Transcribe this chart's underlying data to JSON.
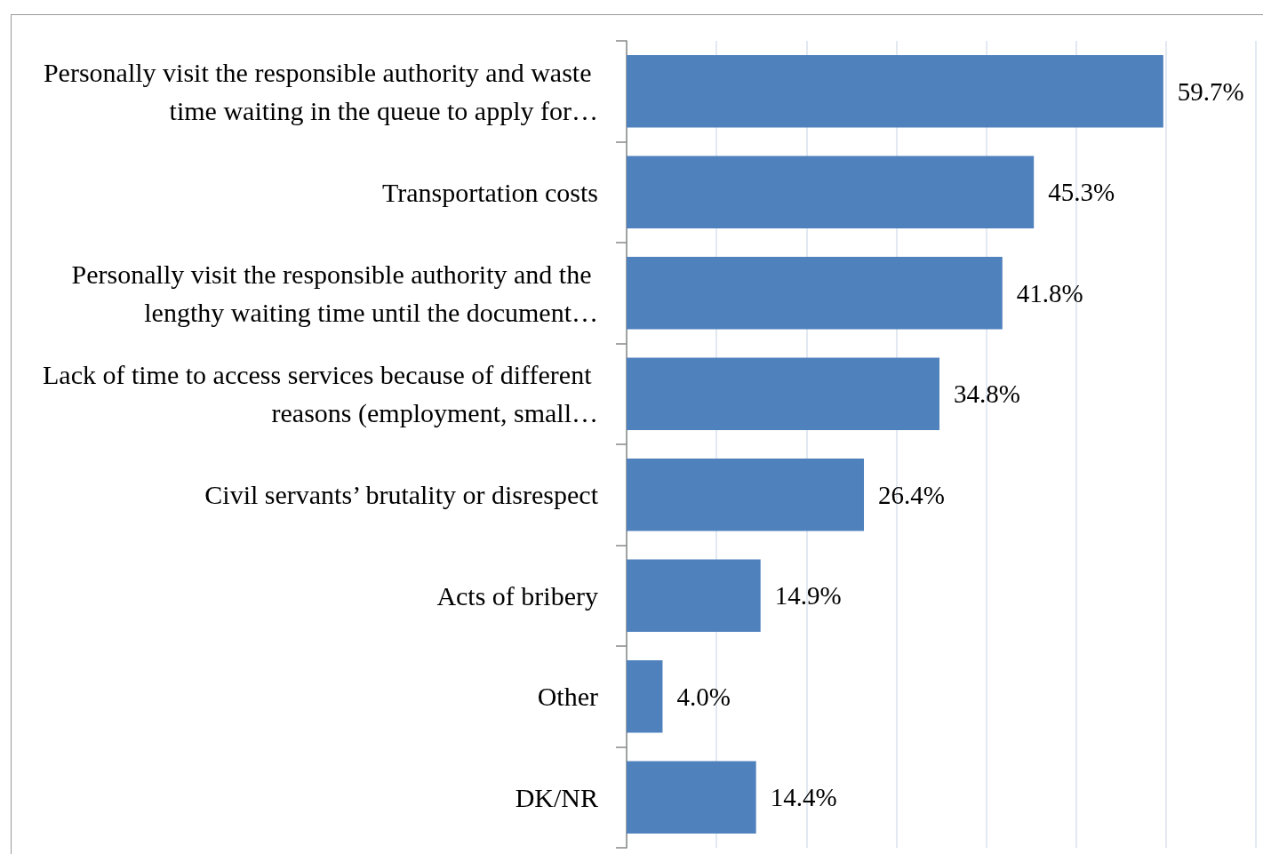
{
  "chart_data": {
    "type": "bar",
    "orientation": "horizontal",
    "categories": [
      "Personally visit the responsible authority and waste time waiting in the queue to apply for…",
      "Transportation costs",
      "Personally visit the responsible authority and the lengthy waiting time until the document…",
      "Lack of time to access services because of different reasons (employment, small…",
      "Civil servants’ brutality or disrespect",
      "Acts of bribery",
      "Other",
      "DK/NR"
    ],
    "values": [
      59.7,
      45.3,
      41.8,
      34.8,
      26.4,
      14.9,
      4.0,
      14.4
    ],
    "value_labels": [
      "59.7%",
      "45.3%",
      "41.8%",
      "34.8%",
      "26.4%",
      "14.9%",
      "4.0%",
      "14.4%"
    ],
    "color": "#4f81bd",
    "xlim": [
      0,
      70
    ],
    "xticks": [
      {
        "value": 0,
        "label": null
      },
      {
        "value": 10,
        "label": null
      },
      {
        "value": 20,
        "label": null
      },
      {
        "value": 30,
        "label": null
      },
      {
        "value": 40,
        "label": null
      },
      {
        "value": 50,
        "label": null
      },
      {
        "value": 60,
        "label": null
      },
      {
        "value": 70,
        "label": null
      }
    ],
    "grid": "x",
    "tick_labels": "y"
  }
}
